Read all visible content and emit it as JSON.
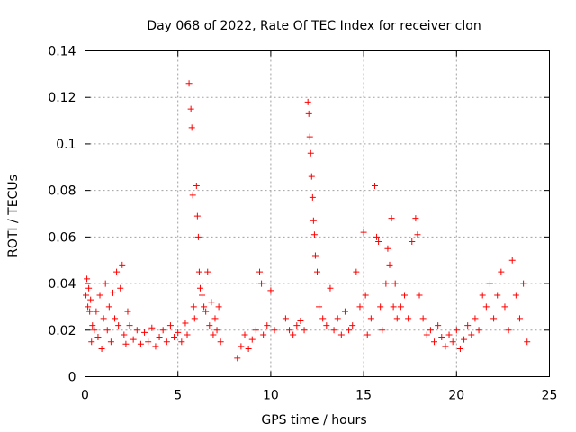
{
  "chart_data": {
    "type": "scatter",
    "title": "Day 068 of 2022, Rate Of TEC Index for receiver clon",
    "xlabel": "GPS time / hours",
    "ylabel": "ROTI / TECUs",
    "xlim": [
      0,
      25
    ],
    "ylim": [
      0,
      0.14
    ],
    "xticks": [
      0,
      5,
      10,
      15,
      20,
      25
    ],
    "xtick_labels": [
      "0",
      "5",
      "10",
      "15",
      "20",
      "25"
    ],
    "yticks": [
      0,
      0.02,
      0.04,
      0.06,
      0.08,
      0.1,
      0.12,
      0.14
    ],
    "ytick_labels": [
      "0",
      "0.02",
      "0.04",
      "0.06",
      "0.08",
      "0.1",
      "0.12",
      "0.14"
    ],
    "grid": true,
    "marker": "+",
    "color": "#ff0000",
    "series": [
      {
        "x": [
          0.05,
          0.1,
          0.15,
          0.2,
          0.25,
          0.3,
          0.35,
          0.4,
          0.5,
          0.6,
          0.7,
          0.8,
          0.9,
          1.0,
          1.1,
          1.2,
          1.3,
          1.4,
          1.5,
          1.6,
          1.7,
          1.8,
          1.9,
          2.0,
          2.1,
          2.2,
          2.3,
          2.4,
          2.6,
          2.8,
          3.0,
          3.2,
          3.4,
          3.6,
          3.8,
          4.0,
          4.2,
          4.4,
          4.6,
          4.8,
          5.0,
          5.2,
          5.4,
          5.5,
          5.6,
          5.7,
          5.75,
          5.8,
          5.85,
          5.9,
          6.0,
          6.05,
          6.1,
          6.15,
          6.2,
          6.3,
          6.4,
          6.5,
          6.6,
          6.7,
          6.8,
          6.9,
          7.0,
          7.1,
          7.2,
          7.3,
          8.2,
          8.4,
          8.6,
          8.8,
          9.0,
          9.2,
          9.4,
          9.5,
          9.6,
          9.8,
          10.0,
          10.2,
          10.8,
          11.0,
          11.2,
          11.4,
          11.6,
          11.8,
          12.0,
          12.05,
          12.1,
          12.15,
          12.2,
          12.25,
          12.3,
          12.35,
          12.4,
          12.5,
          12.6,
          12.8,
          13.0,
          13.2,
          13.4,
          13.6,
          13.8,
          14.0,
          14.2,
          14.4,
          14.6,
          14.8,
          15.0,
          15.1,
          15.2,
          15.4,
          15.6,
          15.7,
          15.8,
          15.9,
          16.0,
          16.2,
          16.3,
          16.4,
          16.5,
          16.6,
          16.7,
          16.8,
          17.0,
          17.2,
          17.4,
          17.6,
          17.8,
          17.9,
          18.0,
          18.2,
          18.4,
          18.6,
          18.8,
          19.0,
          19.2,
          19.4,
          19.6,
          19.8,
          20.0,
          20.2,
          20.4,
          20.6,
          20.8,
          21.0,
          21.2,
          21.4,
          21.6,
          21.8,
          22.0,
          22.2,
          22.4,
          22.6,
          22.8,
          23.0,
          23.2,
          23.4,
          23.6,
          23.8
        ],
        "y": [
          0.035,
          0.042,
          0.03,
          0.038,
          0.028,
          0.033,
          0.015,
          0.022,
          0.02,
          0.028,
          0.017,
          0.035,
          0.012,
          0.025,
          0.04,
          0.02,
          0.03,
          0.015,
          0.036,
          0.025,
          0.045,
          0.022,
          0.038,
          0.048,
          0.018,
          0.014,
          0.028,
          0.022,
          0.016,
          0.02,
          0.014,
          0.019,
          0.015,
          0.021,
          0.013,
          0.017,
          0.02,
          0.015,
          0.022,
          0.017,
          0.019,
          0.015,
          0.023,
          0.018,
          0.126,
          0.115,
          0.107,
          0.078,
          0.03,
          0.025,
          0.082,
          0.069,
          0.06,
          0.045,
          0.038,
          0.035,
          0.03,
          0.028,
          0.045,
          0.022,
          0.032,
          0.018,
          0.025,
          0.02,
          0.03,
          0.015,
          0.008,
          0.013,
          0.018,
          0.012,
          0.016,
          0.02,
          0.045,
          0.04,
          0.018,
          0.022,
          0.037,
          0.02,
          0.025,
          0.02,
          0.018,
          0.022,
          0.024,
          0.02,
          0.118,
          0.113,
          0.103,
          0.096,
          0.086,
          0.077,
          0.067,
          0.061,
          0.052,
          0.045,
          0.03,
          0.025,
          0.022,
          0.038,
          0.02,
          0.025,
          0.018,
          0.028,
          0.02,
          0.022,
          0.045,
          0.03,
          0.062,
          0.035,
          0.018,
          0.025,
          0.082,
          0.06,
          0.058,
          0.03,
          0.02,
          0.04,
          0.055,
          0.048,
          0.068,
          0.03,
          0.04,
          0.025,
          0.03,
          0.035,
          0.025,
          0.058,
          0.068,
          0.061,
          0.035,
          0.025,
          0.018,
          0.02,
          0.015,
          0.022,
          0.017,
          0.013,
          0.018,
          0.015,
          0.02,
          0.012,
          0.016,
          0.022,
          0.018,
          0.025,
          0.02,
          0.035,
          0.03,
          0.04,
          0.025,
          0.035,
          0.045,
          0.03,
          0.02,
          0.05,
          0.035,
          0.025,
          0.04,
          0.015
        ]
      }
    ]
  }
}
